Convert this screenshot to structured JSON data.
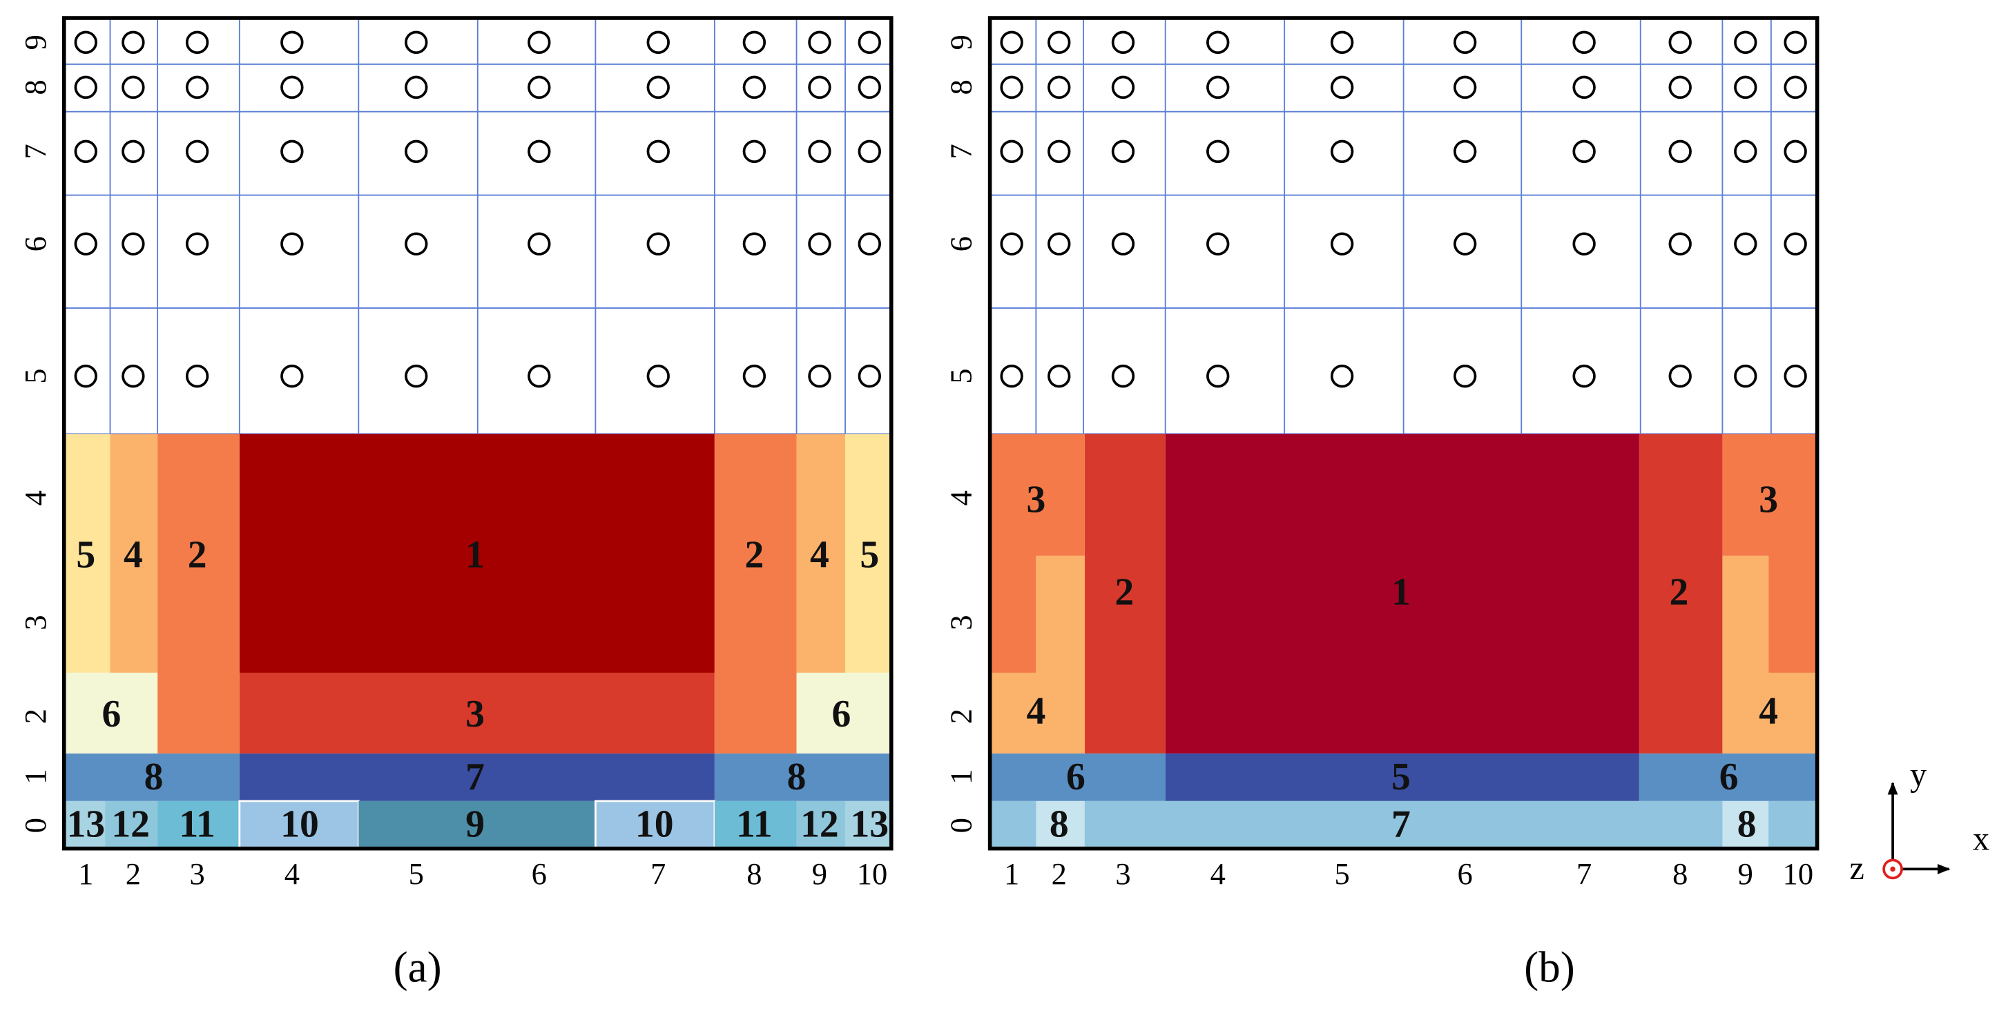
{
  "panels": [
    {
      "caption": "(a)",
      "x_labels": [
        "1",
        "2",
        "3",
        "4",
        "5",
        "6",
        "7",
        "8",
        "9",
        "10"
      ],
      "y_labels": [
        "0",
        "1",
        "2",
        "3",
        "4",
        "5",
        "6",
        "7",
        "8",
        "9"
      ],
      "regions": [
        "1",
        "3",
        "2",
        "2",
        "4",
        "4",
        "5",
        "5",
        "6",
        "6",
        "8",
        "8",
        "7",
        "13",
        "12",
        "11",
        "10",
        "9",
        "10",
        "11",
        "12",
        "13"
      ]
    },
    {
      "caption": "(b)",
      "x_labels": [
        "1",
        "2",
        "3",
        "4",
        "5",
        "6",
        "7",
        "8",
        "9",
        "10"
      ],
      "y_labels": [
        "0",
        "1",
        "2",
        "3",
        "4",
        "5",
        "6",
        "7",
        "8",
        "9"
      ],
      "regions": [
        "1",
        "2",
        "2",
        "3",
        "3",
        "4",
        "4",
        "6",
        "6",
        "5",
        "7",
        "8",
        "8"
      ]
    }
  ],
  "axes_icon": {
    "x": "x",
    "y": "y",
    "z": "z"
  }
}
